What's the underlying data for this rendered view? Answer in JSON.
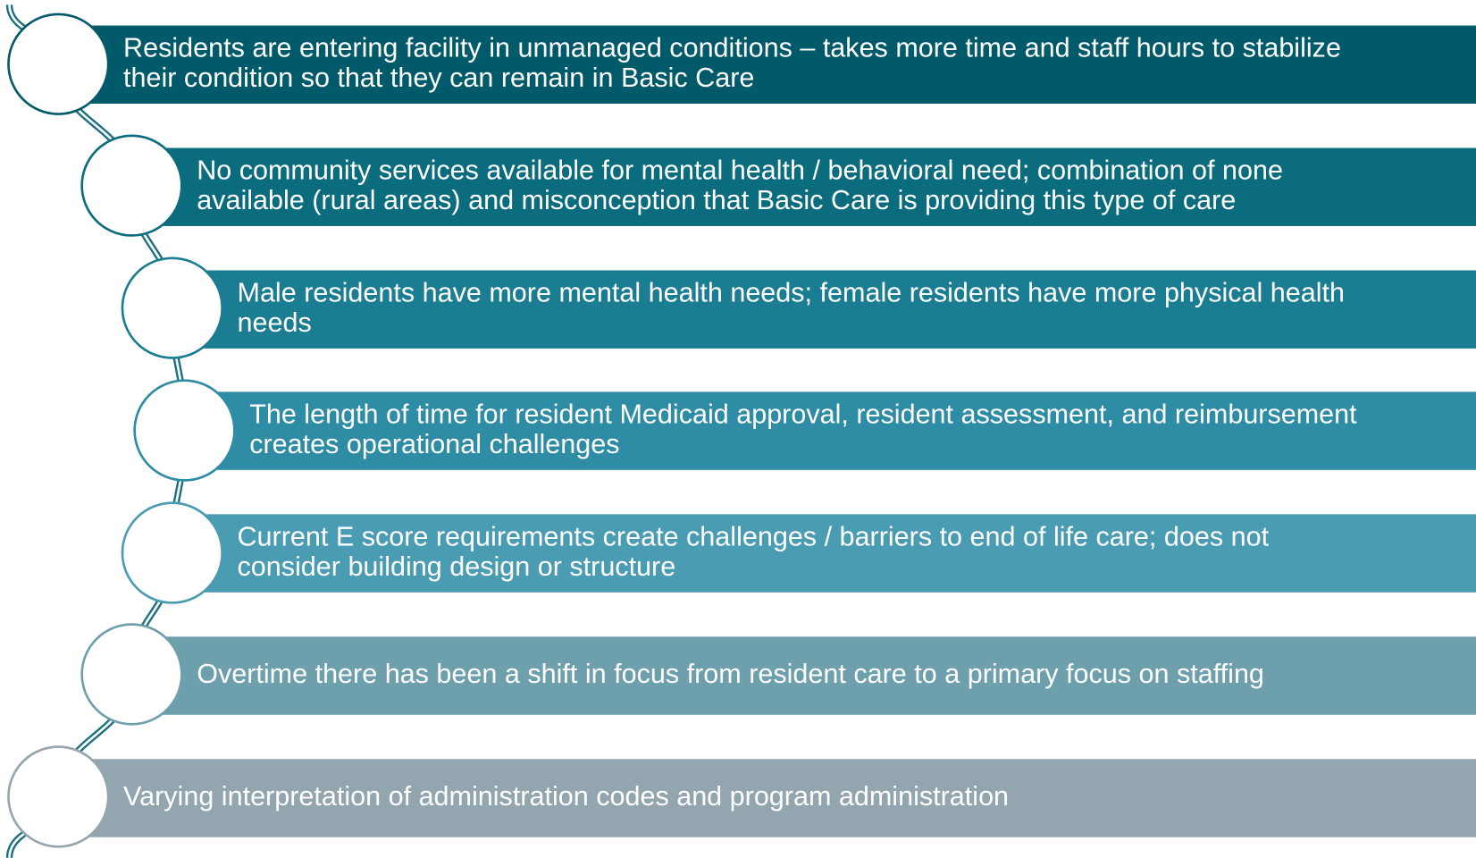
{
  "items": [
    {
      "lines": [
        "Residents are entering facility in unmanaged conditions – takes more time and staff hours to stabilize",
        "their condition so that they can remain in Basic Care"
      ]
    },
    {
      "lines": [
        "No community services available for mental health / behavioral need; combination of none",
        "available (rural areas) and misconception that Basic Care is providing this type of care"
      ]
    },
    {
      "lines": [
        "Male residents have more mental health needs; female residents have more physical health",
        "needs"
      ]
    },
    {
      "lines": [
        "The length of time for resident Medicaid approval, resident assessment, and reimbursement",
        "creates operational challenges"
      ]
    },
    {
      "lines": [
        "Current E score requirements create challenges / barriers to end of life care; does not",
        "consider building design or structure"
      ]
    },
    {
      "lines": [
        "Overtime there has been a shift in focus from resident care to a primary focus on staffing"
      ]
    },
    {
      "lines": [
        "Varying interpretation of administration codes and program administration"
      ]
    }
  ]
}
